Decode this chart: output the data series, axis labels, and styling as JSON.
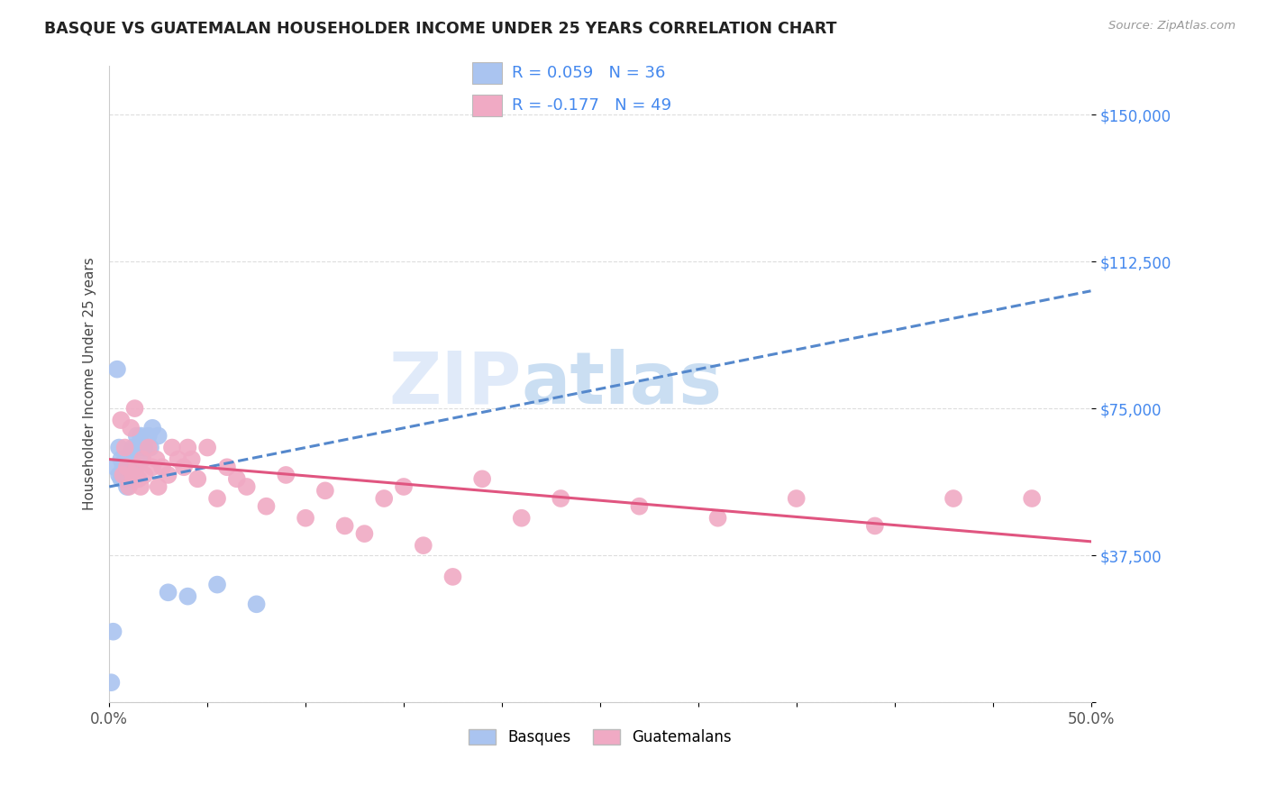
{
  "title": "BASQUE VS GUATEMALAN HOUSEHOLDER INCOME UNDER 25 YEARS CORRELATION CHART",
  "source": "Source: ZipAtlas.com",
  "ylabel": "Householder Income Under 25 years",
  "xlim": [
    0.0,
    0.5
  ],
  "ylim": [
    0,
    162500
  ],
  "xticks": [
    0.0,
    0.05,
    0.1,
    0.15,
    0.2,
    0.25,
    0.3,
    0.35,
    0.4,
    0.45,
    0.5
  ],
  "xticklabels": [
    "0.0%",
    "",
    "",
    "",
    "",
    "",
    "",
    "",
    "",
    "",
    "50.0%"
  ],
  "yticks": [
    0,
    37500,
    75000,
    112500,
    150000
  ],
  "yticklabels": [
    "",
    "$37,500",
    "$75,000",
    "$112,500",
    "$150,000"
  ],
  "grid_color": "#dddddd",
  "background_color": "#ffffff",
  "basque_color": "#aac4f0",
  "guatemalan_color": "#f0aac4",
  "basque_line_color": "#5588cc",
  "guatemalan_line_color": "#e05580",
  "basque_R": 0.059,
  "basque_N": 36,
  "guatemalan_R": -0.177,
  "guatemalan_N": 49,
  "legend_label_basque": "Basques",
  "legend_label_guatemalan": "Guatemalans",
  "watermark_zip": "ZIP",
  "watermark_atlas": "atlas",
  "basque_x": [
    0.001,
    0.002,
    0.003,
    0.004,
    0.005,
    0.005,
    0.006,
    0.006,
    0.007,
    0.007,
    0.008,
    0.008,
    0.009,
    0.009,
    0.01,
    0.01,
    0.01,
    0.011,
    0.011,
    0.012,
    0.012,
    0.013,
    0.013,
    0.014,
    0.015,
    0.016,
    0.017,
    0.018,
    0.02,
    0.021,
    0.022,
    0.025,
    0.03,
    0.04,
    0.055,
    0.075
  ],
  "basque_y": [
    5000,
    18000,
    60000,
    85000,
    58000,
    65000,
    57000,
    62000,
    60000,
    57000,
    62000,
    57000,
    60000,
    55000,
    63000,
    58000,
    62000,
    60000,
    57000,
    60000,
    65000,
    60000,
    65000,
    68000,
    65000,
    68000,
    62000,
    65000,
    68000,
    65000,
    70000,
    68000,
    28000,
    27000,
    30000,
    25000
  ],
  "guatemalan_x": [
    0.006,
    0.007,
    0.008,
    0.009,
    0.01,
    0.011,
    0.012,
    0.013,
    0.014,
    0.015,
    0.016,
    0.017,
    0.018,
    0.02,
    0.022,
    0.024,
    0.025,
    0.027,
    0.03,
    0.032,
    0.035,
    0.038,
    0.04,
    0.042,
    0.045,
    0.05,
    0.055,
    0.06,
    0.065,
    0.07,
    0.08,
    0.09,
    0.1,
    0.11,
    0.12,
    0.13,
    0.14,
    0.15,
    0.16,
    0.175,
    0.19,
    0.21,
    0.23,
    0.27,
    0.31,
    0.35,
    0.39,
    0.43,
    0.47
  ],
  "guatemalan_y": [
    72000,
    58000,
    65000,
    60000,
    55000,
    70000,
    58000,
    75000,
    60000,
    57000,
    55000,
    62000,
    58000,
    65000,
    60000,
    62000,
    55000,
    60000,
    58000,
    65000,
    62000,
    60000,
    65000,
    62000,
    57000,
    65000,
    52000,
    60000,
    57000,
    55000,
    50000,
    58000,
    47000,
    54000,
    45000,
    43000,
    52000,
    55000,
    40000,
    32000,
    57000,
    47000,
    52000,
    50000,
    47000,
    52000,
    45000,
    52000,
    52000
  ]
}
